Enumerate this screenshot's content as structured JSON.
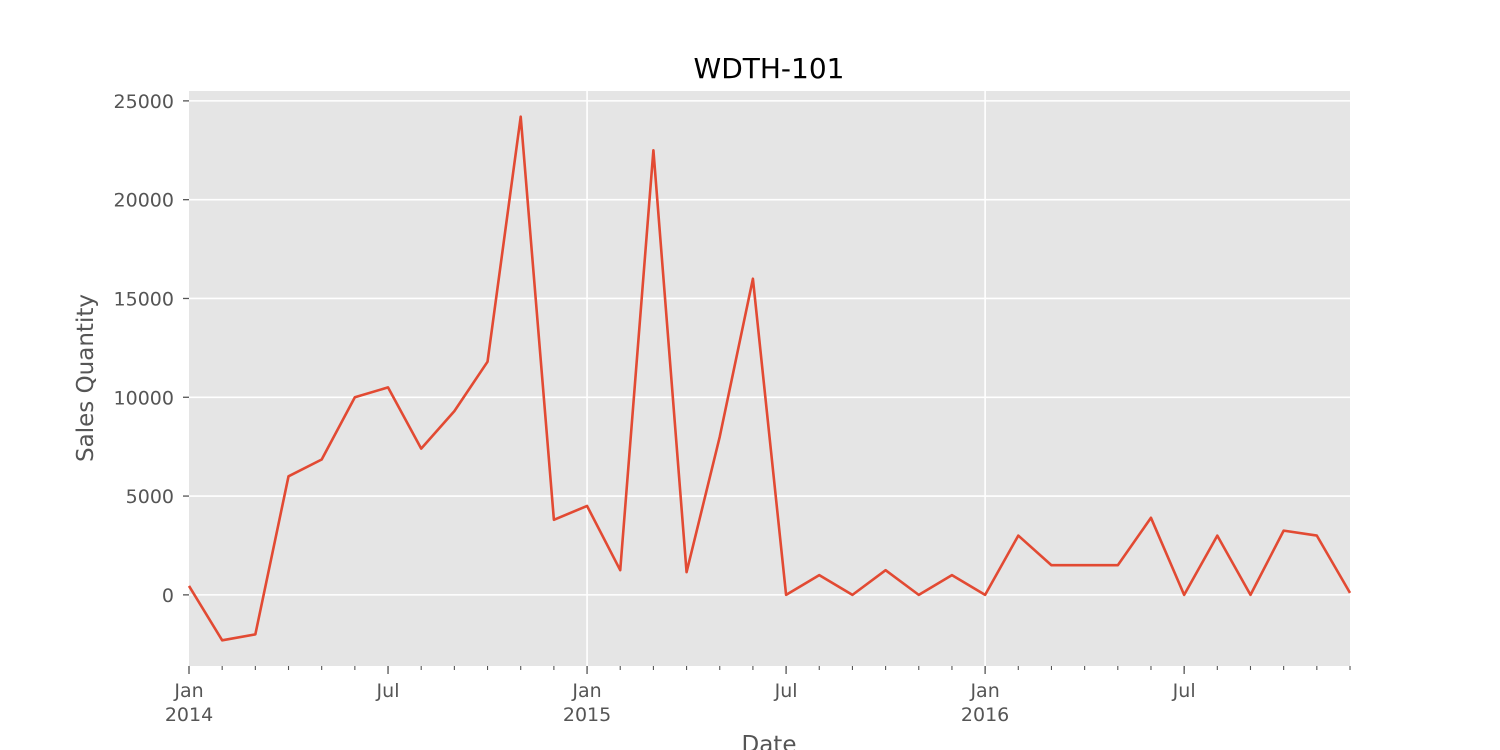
{
  "chart_data": {
    "type": "line",
    "title": "WDTH-101",
    "xlabel": "Date",
    "ylabel": "Sales Quantity",
    "x": [
      "2014-01",
      "2014-02",
      "2014-03",
      "2014-04",
      "2014-05",
      "2014-06",
      "2014-07",
      "2014-08",
      "2014-09",
      "2014-10",
      "2014-11",
      "2014-12",
      "2015-01",
      "2015-02",
      "2015-03",
      "2015-04",
      "2015-05",
      "2015-06",
      "2015-07",
      "2015-08",
      "2015-09",
      "2015-10",
      "2015-11",
      "2015-12",
      "2016-01",
      "2016-02",
      "2016-03",
      "2016-04",
      "2016-05",
      "2016-06",
      "2016-07",
      "2016-08",
      "2016-09",
      "2016-10",
      "2016-11",
      "2016-12"
    ],
    "series": [
      {
        "values": [
          450,
          -2300,
          -2000,
          6000,
          6850,
          10000,
          10500,
          7400,
          9300,
          11800,
          24200,
          3800,
          4500,
          1250,
          22500,
          1150,
          8000,
          16000,
          0,
          1000,
          0,
          1250,
          0,
          1000,
          0,
          3000,
          1500,
          1500,
          1500,
          3900,
          0,
          3000,
          0,
          3250,
          3000,
          100
        ]
      }
    ],
    "ylim": [
      -3600,
      25500
    ],
    "xlim": [
      "2014-01",
      "2016-12"
    ],
    "yticks": [
      {
        "value": 0,
        "label": "0"
      },
      {
        "value": 5000,
        "label": "5000"
      },
      {
        "value": 10000,
        "label": "10000"
      },
      {
        "value": 15000,
        "label": "15000"
      },
      {
        "value": 20000,
        "label": "20000"
      },
      {
        "value": 25000,
        "label": "25000"
      }
    ],
    "xticks_major": [
      {
        "value": "2014-01",
        "label": "Jan",
        "sublabel": "2014"
      },
      {
        "value": "2014-07",
        "label": "Jul",
        "sublabel": ""
      },
      {
        "value": "2015-01",
        "label": "Jan",
        "sublabel": "2015"
      },
      {
        "value": "2015-07",
        "label": "Jul",
        "sublabel": ""
      },
      {
        "value": "2016-01",
        "label": "Jan",
        "sublabel": "2016"
      },
      {
        "value": "2016-07",
        "label": "Jul",
        "sublabel": ""
      }
    ],
    "gridlines_x": [
      "2015-01",
      "2016-01"
    ],
    "grid": true,
    "colors": {
      "plot_background": "#e5e5e5",
      "grid": "#ffffff",
      "line": "#e24a33",
      "tick_text": "#555555"
    }
  }
}
